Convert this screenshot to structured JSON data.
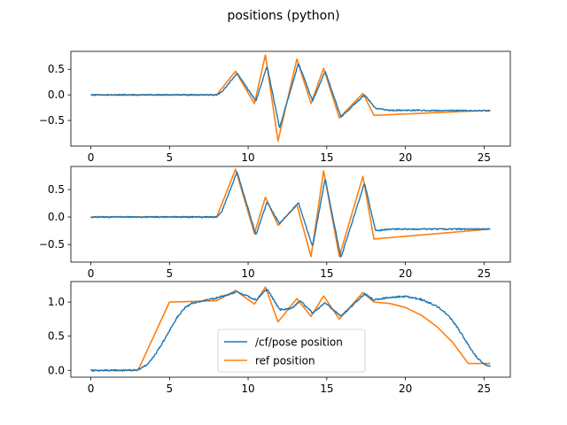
{
  "figure": {
    "title": "positions (python)"
  },
  "colors": {
    "pose": "#1f77b4",
    "ref": "#ff7f0e",
    "axes": "#000000"
  },
  "chart_data": [
    {
      "type": "line",
      "xlim": [
        -1.27,
        26.67
      ],
      "ylim": [
        -1.0,
        0.85
      ],
      "xticks": [
        0,
        5,
        10,
        15,
        20,
        25
      ],
      "yticks": [
        -0.5,
        0.0,
        0.5
      ],
      "ytick_labels": [
        "−0.5",
        "0.0",
        "0.5"
      ],
      "series": [
        {
          "key": "ref",
          "x": [
            0,
            8.0,
            9.2,
            10.4,
            11.1,
            11.9,
            13.1,
            14.0,
            14.8,
            15.8,
            17.3,
            18.0,
            25.4
          ],
          "y": [
            0.0,
            0.0,
            0.46,
            -0.17,
            0.78,
            -0.9,
            0.7,
            -0.17,
            0.52,
            -0.45,
            0.03,
            -0.4,
            -0.3
          ]
        },
        {
          "key": "pose",
          "noise": 0.012,
          "x": [
            0,
            8.0,
            8.3,
            9.3,
            10.5,
            11.2,
            12.0,
            13.2,
            14.1,
            14.9,
            15.9,
            17.4,
            18.1,
            19.0,
            25.4
          ],
          "y": [
            0.0,
            0.0,
            0.05,
            0.42,
            -0.12,
            0.56,
            -0.64,
            0.62,
            -0.12,
            0.46,
            -0.43,
            0.0,
            -0.26,
            -0.3,
            -0.31
          ]
        }
      ]
    },
    {
      "type": "line",
      "xlim": [
        -1.27,
        26.67
      ],
      "ylim": [
        -0.82,
        0.92
      ],
      "xticks": [
        0,
        5,
        10,
        15,
        20,
        25
      ],
      "yticks": [
        -0.5,
        0.0,
        0.5
      ],
      "ytick_labels": [
        "−0.5",
        "0.0",
        "0.5"
      ],
      "series": [
        {
          "key": "ref",
          "x": [
            0,
            8.0,
            9.2,
            10.4,
            11.1,
            11.9,
            13.1,
            14.0,
            14.8,
            15.8,
            17.3,
            18.0,
            25.4
          ],
          "y": [
            0.0,
            0.0,
            0.87,
            -0.3,
            0.36,
            -0.15,
            0.22,
            -0.72,
            0.84,
            -0.72,
            0.74,
            -0.4,
            -0.22
          ]
        },
        {
          "key": "pose",
          "noise": 0.012,
          "x": [
            0,
            8.0,
            8.3,
            9.3,
            10.5,
            11.2,
            12.0,
            13.2,
            14.1,
            14.9,
            15.9,
            17.4,
            18.1,
            19.0,
            25.4
          ],
          "y": [
            0.0,
            0.0,
            0.08,
            0.82,
            -0.33,
            0.27,
            -0.12,
            0.26,
            -0.54,
            0.7,
            -0.74,
            0.62,
            -0.25,
            -0.22,
            -0.22
          ]
        }
      ]
    },
    {
      "type": "line",
      "xlim": [
        -1.27,
        26.67
      ],
      "ylim": [
        -0.1,
        1.3
      ],
      "xticks": [
        0,
        5,
        10,
        15,
        20,
        25
      ],
      "yticks": [
        0.0,
        0.5,
        1.0
      ],
      "ytick_labels": [
        "0.0",
        "0.5",
        "1.0"
      ],
      "legend": {
        "placement": "lower-center",
        "entries": [
          {
            "key": "pose",
            "label": "/cf/pose position"
          },
          {
            "key": "ref",
            "label": "ref position"
          }
        ]
      },
      "series": [
        {
          "key": "ref",
          "x": [
            0,
            3.0,
            5.0,
            8.0,
            9.2,
            10.4,
            11.1,
            11.9,
            13.1,
            14.0,
            14.8,
            15.8,
            17.3,
            18.0,
            19.0,
            20.0,
            21.0,
            22.0,
            23.0,
            24.0,
            25.4
          ],
          "y": [
            0.0,
            0.0,
            1.0,
            1.02,
            1.17,
            0.97,
            1.22,
            0.71,
            1.05,
            0.79,
            1.09,
            0.75,
            1.14,
            1.0,
            0.98,
            0.92,
            0.81,
            0.64,
            0.41,
            0.1,
            0.1
          ]
        },
        {
          "key": "pose",
          "noise": 0.012,
          "x": [
            0,
            1.0,
            2.0,
            3.0,
            3.5,
            4.0,
            4.5,
            5.0,
            5.5,
            6.0,
            6.5,
            7.0,
            8.0,
            9.3,
            10.5,
            11.2,
            12.0,
            12.8,
            13.3,
            14.1,
            14.9,
            15.9,
            17.4,
            18.0,
            19.0,
            20.0,
            21.0,
            22.0,
            22.5,
            23.0,
            23.5,
            24.0,
            24.5,
            25.0,
            25.4
          ],
          "y": [
            0.0,
            0.0,
            0.0,
            0.01,
            0.07,
            0.2,
            0.38,
            0.58,
            0.78,
            0.92,
            0.99,
            1.01,
            1.06,
            1.15,
            1.03,
            1.19,
            0.89,
            0.91,
            1.02,
            0.84,
            0.99,
            0.79,
            1.12,
            1.03,
            1.07,
            1.08,
            1.04,
            0.94,
            0.85,
            0.73,
            0.56,
            0.37,
            0.2,
            0.09,
            0.05
          ]
        }
      ]
    }
  ]
}
